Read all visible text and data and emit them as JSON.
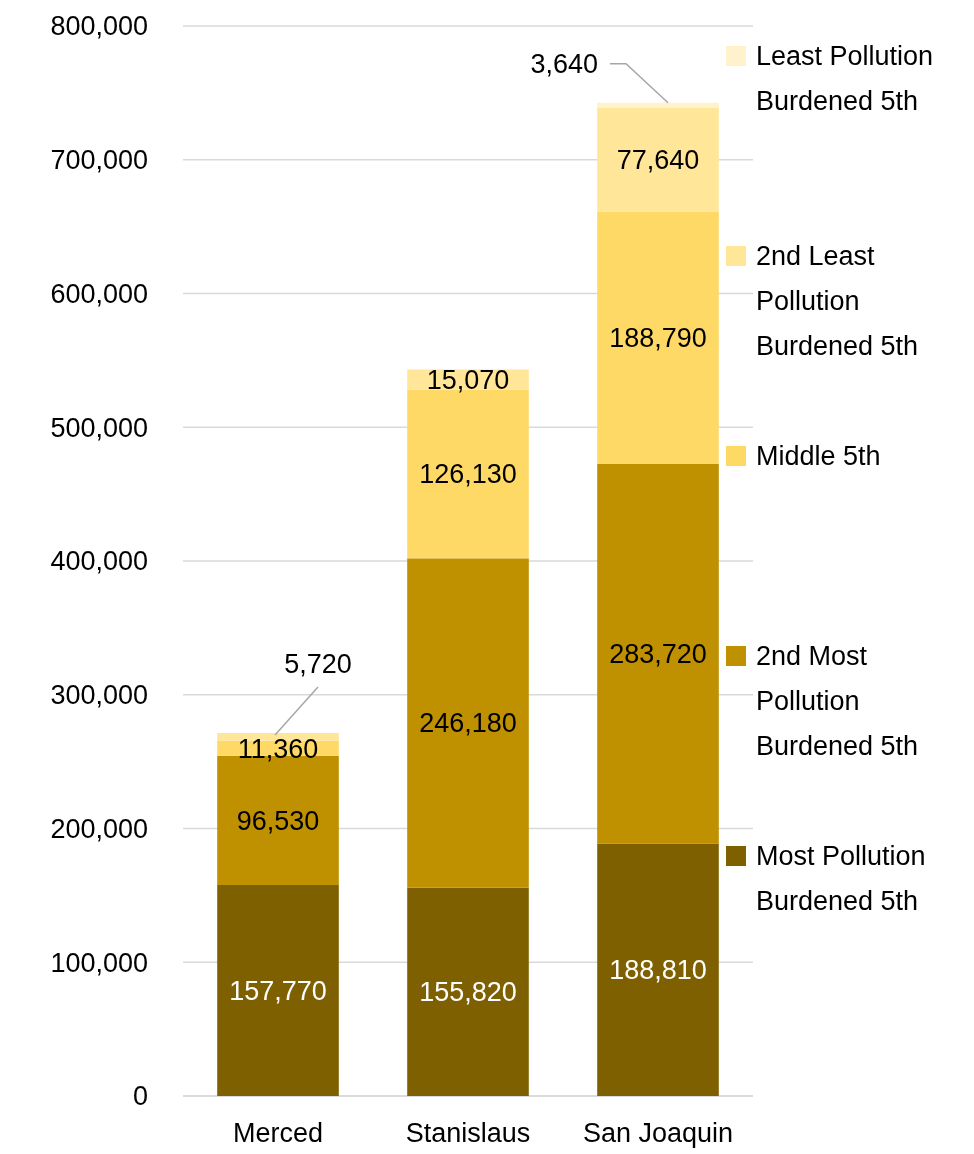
{
  "chart_data": {
    "type": "bar",
    "stacked": true,
    "categories": [
      "Merced",
      "Stanislaus",
      "San Joaquin"
    ],
    "series": [
      {
        "name": "Most Pollution Burdened 5th",
        "color": "#7f6000",
        "values": [
          157770,
          155820,
          188810
        ],
        "value_labels": [
          "157,770",
          "155,820",
          "188,810"
        ]
      },
      {
        "name": "2nd Most Pollution Burdened 5th",
        "color": "#bf9000",
        "values": [
          96530,
          246180,
          283720
        ],
        "value_labels": [
          "96,530",
          "246,180",
          "283,720"
        ]
      },
      {
        "name": "Middle 5th",
        "color": "#ffd966",
        "values": [
          11360,
          126130,
          188790
        ],
        "value_labels": [
          "11,360",
          "126,130",
          "188,790"
        ]
      },
      {
        "name": "2nd Least Pollution Burdened 5th",
        "color": "#ffe699",
        "values": [
          5720,
          15070,
          77640
        ],
        "value_labels": [
          "5,720",
          "15,070",
          "77,640"
        ]
      },
      {
        "name": "Least Pollution Burdened 5th",
        "color": "#fff2cc",
        "values": [
          null,
          null,
          3640
        ],
        "value_labels": [
          null,
          null,
          "3,640"
        ]
      }
    ],
    "ylim": [
      0,
      800000
    ],
    "yticks": [
      {
        "value": 0,
        "label": "0"
      },
      {
        "value": 100000,
        "label": "100,000"
      },
      {
        "value": 200000,
        "label": "200,000"
      },
      {
        "value": 300000,
        "label": "300,000"
      },
      {
        "value": 400000,
        "label": "400,000"
      },
      {
        "value": 500000,
        "label": "500,000"
      },
      {
        "value": 600000,
        "label": "600,000"
      },
      {
        "value": 700000,
        "label": "700,000"
      },
      {
        "value": 800000,
        "label": "800,000"
      }
    ],
    "grid": "y",
    "legend": "right"
  }
}
